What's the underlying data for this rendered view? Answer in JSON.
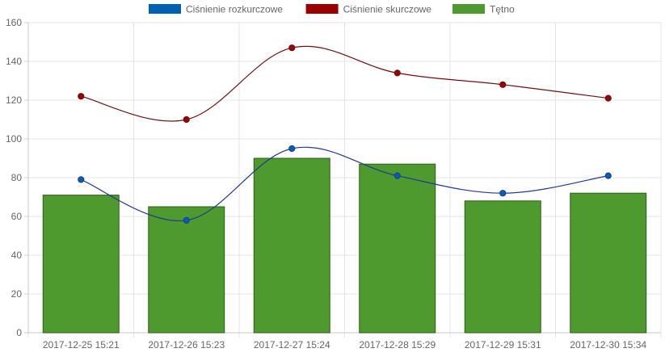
{
  "chart_data": {
    "type": "bar",
    "categories": [
      "2017-12-25 15:21",
      "2017-12-26 15:23",
      "2017-12-27 15:24",
      "2017-12-28 15:29",
      "2017-12-29 15:31",
      "2017-12-30 15:34"
    ],
    "ylim": [
      0,
      160
    ],
    "yticks": [
      0,
      20,
      40,
      60,
      80,
      100,
      120,
      140,
      160
    ],
    "grid": true,
    "legend_position": "top-center",
    "series": [
      {
        "name": "Ciśnienie rozkurczowe",
        "type": "line",
        "color": "#0061b3",
        "stroke": "#1f3a93",
        "values": [
          79,
          58,
          95,
          81,
          72,
          81
        ]
      },
      {
        "name": "Ciśnienie skurczowe",
        "type": "line",
        "color": "#9b0000",
        "stroke": "#6e0e0e",
        "values": [
          122,
          110,
          147,
          134,
          128,
          121
        ]
      },
      {
        "name": "Tętno",
        "type": "bar",
        "color": "#4f9a2f",
        "stroke": "#2b5e14",
        "values": [
          71,
          65,
          90,
          87,
          68,
          72
        ]
      }
    ]
  }
}
